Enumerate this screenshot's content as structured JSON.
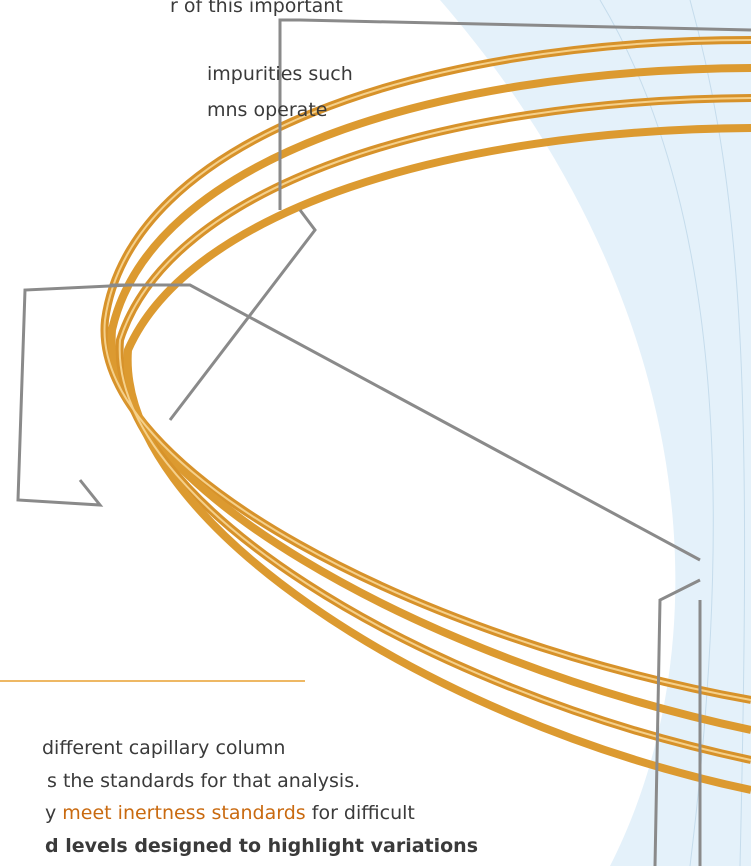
{
  "document": {
    "top_lines": [
      "r of this important",
      "impurities such",
      "mns operate"
    ],
    "bottom_lines": {
      "line1": "different capillary column",
      "line2": "s the standards for that analysis.",
      "line3": {
        "before": "y",
        "emphasis": "meet inertness standards",
        "after": "for difficult"
      },
      "line4": "d levels designed to highlight variations"
    }
  }
}
